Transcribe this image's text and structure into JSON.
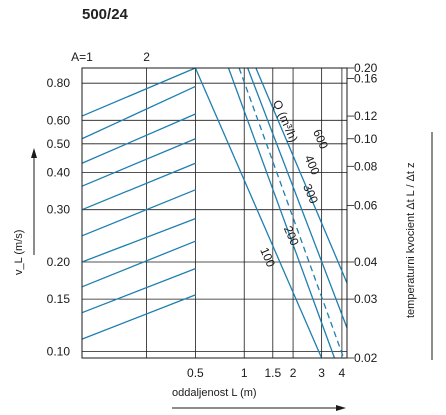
{
  "title": "500/24",
  "chart_data": {
    "type": "line",
    "title": "500/24",
    "xlabel": "oddaljenost L (m)",
    "ylabel": "v_L (m/s)",
    "y2label": "temperaturni kvocient  Δt L / Δt z",
    "x_scale": "log",
    "y_scale": "log",
    "xlim": [
      0.1,
      4.3
    ],
    "ylim": [
      0.095,
      0.9
    ],
    "x_ticks": [
      0.5,
      1,
      1.5,
      2,
      3,
      4
    ],
    "x_tick_labels": [
      "0.5",
      "1",
      "1.5",
      "2",
      "3",
      "4"
    ],
    "y_ticks": [
      0.1,
      0.15,
      0.2,
      0.3,
      0.4,
      0.5,
      0.6,
      0.8
    ],
    "y_tick_labels": [
      "0.10",
      "0.15",
      "0.20",
      "0.30",
      "0.40",
      "0.50",
      "0.60",
      "0.80"
    ],
    "y2_ticks": [
      {
        "label": "0.20",
        "at_y": 0.9
      },
      {
        "label": "0.16",
        "at_y": 0.83
      },
      {
        "label": "0.12",
        "at_y": 0.62
      },
      {
        "label": "0.10",
        "at_y": 0.52
      },
      {
        "label": "0.08",
        "at_y": 0.42
      },
      {
        "label": "0.06",
        "at_y": 0.31
      },
      {
        "label": "0.04",
        "at_y": 0.2
      },
      {
        "label": "0.03",
        "at_y": 0.15
      },
      {
        "label": "0.02",
        "at_y": 0.095
      }
    ],
    "top_labels": [
      {
        "text": "A=1",
        "at_x": 0.1
      },
      {
        "text": "2",
        "at_x": 0.25
      }
    ],
    "grid": true,
    "q_label": "Q (m³/h)",
    "series": [
      {
        "name": "100",
        "style": "solid",
        "x": [
          0.5,
          3.0
        ],
        "y": [
          0.9,
          0.095
        ]
      },
      {
        "name": "200",
        "style": "solid",
        "x": [
          0.8,
          3.6
        ],
        "y": [
          0.9,
          0.095
        ]
      },
      {
        "name": "300",
        "style": "dashed",
        "x": [
          0.93,
          4.1
        ],
        "y": [
          0.9,
          0.095
        ]
      },
      {
        "name": "400",
        "style": "solid",
        "x": [
          1.05,
          4.3
        ],
        "y": [
          0.9,
          0.12
        ]
      },
      {
        "name": "600",
        "style": "solid",
        "x": [
          1.18,
          4.3
        ],
        "y": [
          0.9,
          0.17
        ]
      }
    ],
    "short_lines": [
      {
        "x": [
          0.1,
          0.5
        ],
        "y": [
          0.62,
          0.9
        ]
      },
      {
        "x": [
          0.1,
          0.5
        ],
        "y": [
          0.52,
          0.78
        ]
      },
      {
        "x": [
          0.1,
          0.5
        ],
        "y": [
          0.43,
          0.63
        ]
      },
      {
        "x": [
          0.1,
          0.5
        ],
        "y": [
          0.36,
          0.52
        ]
      },
      {
        "x": [
          0.1,
          0.5
        ],
        "y": [
          0.3,
          0.43
        ]
      },
      {
        "x": [
          0.1,
          0.5
        ],
        "y": [
          0.245,
          0.35
        ]
      },
      {
        "x": [
          0.1,
          0.5
        ],
        "y": [
          0.2,
          0.28
        ]
      },
      {
        "x": [
          0.1,
          0.5
        ],
        "y": [
          0.165,
          0.235
        ]
      },
      {
        "x": [
          0.1,
          0.5
        ],
        "y": [
          0.135,
          0.19
        ]
      },
      {
        "x": [
          0.1,
          0.5
        ],
        "y": [
          0.11,
          0.155
        ]
      }
    ],
    "colors": {
      "curve": "#1f7fb0",
      "grid": "#1a1a1a"
    }
  }
}
